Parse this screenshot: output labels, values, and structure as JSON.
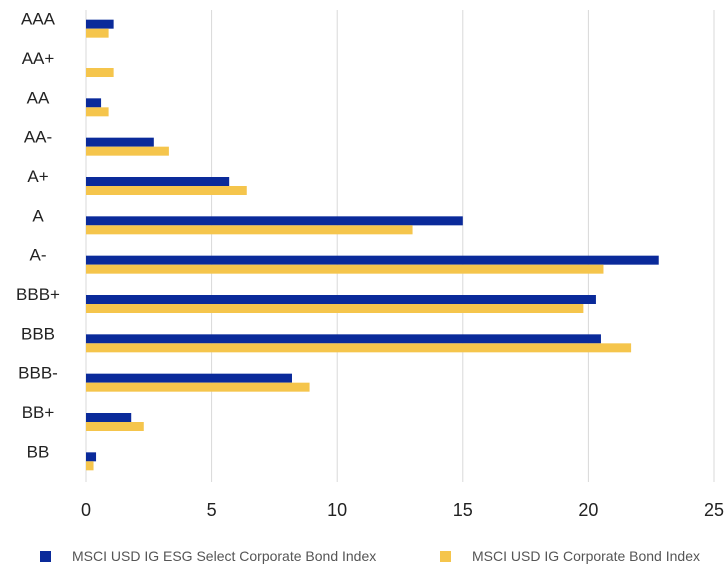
{
  "chart_data": {
    "type": "bar",
    "orientation": "horizontal",
    "categories": [
      "AAA",
      "AA+",
      "AA",
      "AA-",
      "A+",
      "A",
      "A-",
      "BBB+",
      "BBB",
      "BBB-",
      "BB+",
      "BB"
    ],
    "series": [
      {
        "name": "MSCI USD IG ESG Select Corporate Bond Index",
        "color": "#0a2a9a",
        "values": [
          1.1,
          0,
          0.6,
          2.7,
          5.7,
          15.0,
          22.8,
          20.3,
          20.5,
          8.2,
          1.8,
          0.4
        ]
      },
      {
        "name": "MSCI USD IG Corporate Bond Index",
        "color": "#f5c54c",
        "values": [
          0.9,
          1.1,
          0.9,
          3.3,
          6.4,
          13.0,
          20.6,
          19.8,
          21.7,
          8.9,
          2.3,
          0.3
        ]
      }
    ],
    "xlim": [
      0,
      25
    ],
    "xticks": [
      0,
      5,
      10,
      15,
      20,
      25
    ],
    "xlabel": "",
    "ylabel": "",
    "title": "",
    "grid": "vertical",
    "legend_position": "bottom"
  }
}
